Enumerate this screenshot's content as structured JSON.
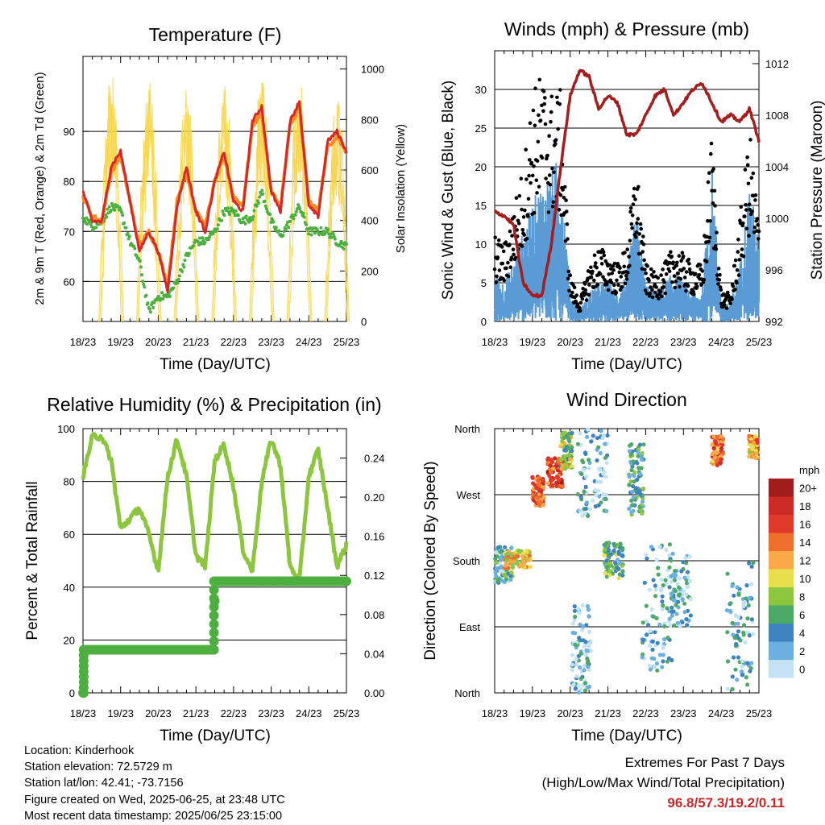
{
  "colors": {
    "temp_2m": "#d62828",
    "temp_9m": "#f28c28",
    "dewpoint": "#4caf3f",
    "insolation": "#f7d54a",
    "wind": "#5b9bd5",
    "gust": "#000000",
    "pressure": "#a31f1f",
    "rh": "#8cc63f",
    "precip": "#4caf3f",
    "extremes_value": "#c62828"
  },
  "time_ticks": [
    "18/23",
    "19/23",
    "20/23",
    "21/23",
    "22/23",
    "23/23",
    "24/23",
    "25/23"
  ],
  "time_axis_label": "Time (Day/UTC)",
  "chart_data": [
    {
      "type": "line",
      "title": "Temperature (F)",
      "ylabel": "2m & 9m T (Red, Orange) & 2m Td (Green)",
      "y2label": "Solar Insolation (Yellow)",
      "ylim": [
        52,
        105
      ],
      "yticks": [
        60,
        70,
        80,
        90
      ],
      "y2lim": [
        0,
        1050
      ],
      "y2ticks": [
        0,
        200,
        400,
        600,
        800,
        1000
      ],
      "x": [
        0,
        0.25,
        0.5,
        0.75,
        1.0,
        1.25,
        1.5,
        1.75,
        2.0,
        2.25,
        2.5,
        2.75,
        3.0,
        3.25,
        3.5,
        3.75,
        4.0,
        4.25,
        4.5,
        4.75,
        5.0,
        5.25,
        5.5,
        5.75,
        6.0,
        6.25,
        6.5,
        6.75,
        7.0
      ],
      "series": [
        {
          "values": [
            78,
            72,
            72,
            83,
            86,
            76,
            66,
            70,
            66,
            58,
            75,
            83,
            74,
            70,
            80,
            86,
            76,
            74,
            92,
            95,
            78,
            74,
            92,
            96,
            75,
            73,
            88,
            90,
            86
          ]
        },
        {
          "values": [
            77,
            73,
            72,
            82,
            85,
            76,
            67,
            70,
            66,
            59,
            76,
            82,
            74,
            71,
            80,
            85,
            77,
            75,
            91,
            94,
            78,
            75,
            91,
            95,
            76,
            74,
            87,
            89,
            86
          ]
        },
        {
          "values": [
            73,
            71,
            72,
            75,
            74,
            68,
            64,
            54,
            57,
            57,
            60,
            65,
            68,
            68,
            70,
            74,
            74,
            72,
            73,
            78,
            72,
            69,
            72,
            75,
            70,
            70,
            70,
            68,
            67
          ]
        },
        {
          "days": [
            0.75,
            1.75,
            2.75,
            3.75,
            4.75,
            5.75,
            6.75
          ],
          "peaks": [
            1000,
            950,
            950,
            960,
            960,
            1000,
            900
          ]
        }
      ]
    },
    {
      "type": "line",
      "title": "Winds (mph) & Pressure (mb)",
      "ylabel": "Sonic Wind & Gust (Blue, Black)",
      "y2label": "Station Pressure (Maroon)",
      "ylim": [
        0,
        35
      ],
      "yticks": [
        0,
        5,
        10,
        15,
        20,
        25,
        30
      ],
      "y2lim": [
        992,
        1013
      ],
      "y2ticks": [
        992,
        996,
        1000,
        1004,
        1008,
        1012
      ],
      "x": [
        0,
        0.25,
        0.5,
        0.75,
        1.0,
        1.25,
        1.5,
        1.75,
        2.0,
        2.25,
        2.5,
        2.75,
        3.0,
        3.25,
        3.5,
        3.75,
        4.0,
        4.25,
        4.5,
        4.75,
        5.0,
        5.25,
        5.5,
        5.75,
        6.0,
        6.25,
        6.5,
        6.75,
        7.0
      ],
      "series": [
        {
          "values": [
            5,
            4,
            6,
            9,
            12,
            14,
            15,
            17,
            3,
            1,
            3,
            4,
            4,
            3,
            5,
            11,
            4,
            3,
            4,
            5,
            4,
            3,
            3,
            16,
            2,
            2,
            6,
            14,
            8
          ]
        },
        {
          "values": [
            9,
            8,
            12,
            16,
            24,
            26,
            24,
            24,
            5,
            2,
            6,
            8,
            7,
            6,
            8,
            17,
            6,
            5,
            6,
            8,
            7,
            6,
            6,
            20,
            3,
            3,
            11,
            20,
            11
          ]
        },
        {
          "values": [
            1000.5,
            1000.2,
            999.5,
            995,
            994,
            994,
            998,
            1004,
            1009.5,
            1011.5,
            1011,
            1008.5,
            1009.5,
            1009,
            1006.5,
            1006.5,
            1008,
            1009.5,
            1010,
            1008,
            1009,
            1010,
            1010.5,
            1009,
            1007.5,
            1008,
            1007.5,
            1008.5,
            1006
          ]
        }
      ]
    },
    {
      "type": "line",
      "title": "Relative Humidity (%) & Precipitation (in)",
      "ylabel": "Percent & Total Rainfall",
      "ylim": [
        0,
        100
      ],
      "yticks": [
        0,
        20,
        40,
        60,
        80,
        100
      ],
      "y2lim": [
        0,
        0.27
      ],
      "y2ticks": [
        "0.00",
        "0.04",
        "0.08",
        "0.12",
        "0.16",
        "0.20",
        "0.24"
      ],
      "x": [
        0,
        0.25,
        0.5,
        0.75,
        1.0,
        1.25,
        1.5,
        1.75,
        2.0,
        2.25,
        2.5,
        2.75,
        3.0,
        3.25,
        3.5,
        3.75,
        4.0,
        4.25,
        4.5,
        4.75,
        5.0,
        5.25,
        5.5,
        5.75,
        6.0,
        6.25,
        6.5,
        6.75,
        7.0
      ],
      "series": [
        {
          "values": [
            82,
            97,
            97,
            88,
            62,
            66,
            70,
            60,
            46,
            82,
            96,
            82,
            52,
            48,
            88,
            94,
            78,
            54,
            46,
            80,
            96,
            86,
            48,
            42,
            82,
            92,
            70,
            48,
            56
          ]
        },
        {
          "x": [
            0,
            0.05,
            0.1,
            3.45,
            3.52,
            7.0
          ],
          "values": [
            0,
            0.044,
            0.044,
            0.044,
            0.114,
            0.114
          ]
        }
      ]
    },
    {
      "type": "scatter",
      "title": "Wind Direction",
      "ylabel": "Direction (Colored By Speed)",
      "yticks": [
        "North",
        "East",
        "South",
        "West",
        "North"
      ],
      "ylim": [
        0,
        360
      ],
      "legend_title": "mph",
      "legend": [
        {
          "label": "20+",
          "color": "#a31c1c"
        },
        {
          "label": "18",
          "color": "#cc2a24"
        },
        {
          "label": "16",
          "color": "#e0392a"
        },
        {
          "label": "14",
          "color": "#f06e2c"
        },
        {
          "label": "12",
          "color": "#f9a948"
        },
        {
          "label": "10",
          "color": "#e9df4e"
        },
        {
          "label": "8",
          "color": "#8cc63f"
        },
        {
          "label": "6",
          "color": "#4ea866"
        },
        {
          "label": "4",
          "color": "#3f82c0"
        },
        {
          "label": "2",
          "color": "#6cb0e0"
        },
        {
          "label": "0",
          "color": "#c3e3f5"
        }
      ],
      "clusters": [
        {
          "day": 0.2,
          "spread": 0.3,
          "dir": 175,
          "dir_spread": 25,
          "speed": 4
        },
        {
          "day": 0.6,
          "spread": 0.35,
          "dir": 182,
          "dir_spread": 12,
          "speed": 11
        },
        {
          "day": 1.15,
          "spread": 0.15,
          "dir": 275,
          "dir_spread": 20,
          "speed": 15
        },
        {
          "day": 1.6,
          "spread": 0.2,
          "dir": 300,
          "dir_spread": 20,
          "speed": 16
        },
        {
          "day": 1.9,
          "spread": 0.15,
          "dir": 330,
          "dir_spread": 25,
          "speed": 8
        },
        {
          "day": 2.3,
          "spread": 0.25,
          "dir": 60,
          "dir_spread": 60,
          "speed": 2
        },
        {
          "day": 2.6,
          "spread": 0.4,
          "dir": 300,
          "dir_spread": 60,
          "speed": 2
        },
        {
          "day": 3.15,
          "spread": 0.25,
          "dir": 180,
          "dir_spread": 25,
          "speed": 6
        },
        {
          "day": 3.75,
          "spread": 0.2,
          "dir": 290,
          "dir_spread": 50,
          "speed": 5
        },
        {
          "day": 4.3,
          "spread": 0.4,
          "dir": 120,
          "dir_spread": 90,
          "speed": 3
        },
        {
          "day": 4.9,
          "spread": 0.3,
          "dir": 140,
          "dir_spread": 50,
          "speed": 3
        },
        {
          "day": 5.9,
          "spread": 0.15,
          "dir": 330,
          "dir_spread": 20,
          "speed": 14
        },
        {
          "day": 6.5,
          "spread": 0.35,
          "dir": 90,
          "dir_spread": 90,
          "speed": 3
        },
        {
          "day": 6.85,
          "spread": 0.12,
          "dir": 335,
          "dir_spread": 15,
          "speed": 12
        }
      ]
    }
  ],
  "footer": {
    "location": "Location: Kinderhook",
    "elevation": "Station elevation: 72.5729 m",
    "latlon": "Station lat/lon: 42.41; -73.7156",
    "created": "Figure created on Wed, 2025-06-25, at 23:48 UTC",
    "recent": "Most recent data timestamp: 2025/06/25 23:15:00"
  },
  "extremes": {
    "line1": "Extremes For Past 7 Days",
    "line2": "(High/Low/Max Wind/Total Precipitation)",
    "value": "96.8/57.3/19.2/0.11"
  }
}
